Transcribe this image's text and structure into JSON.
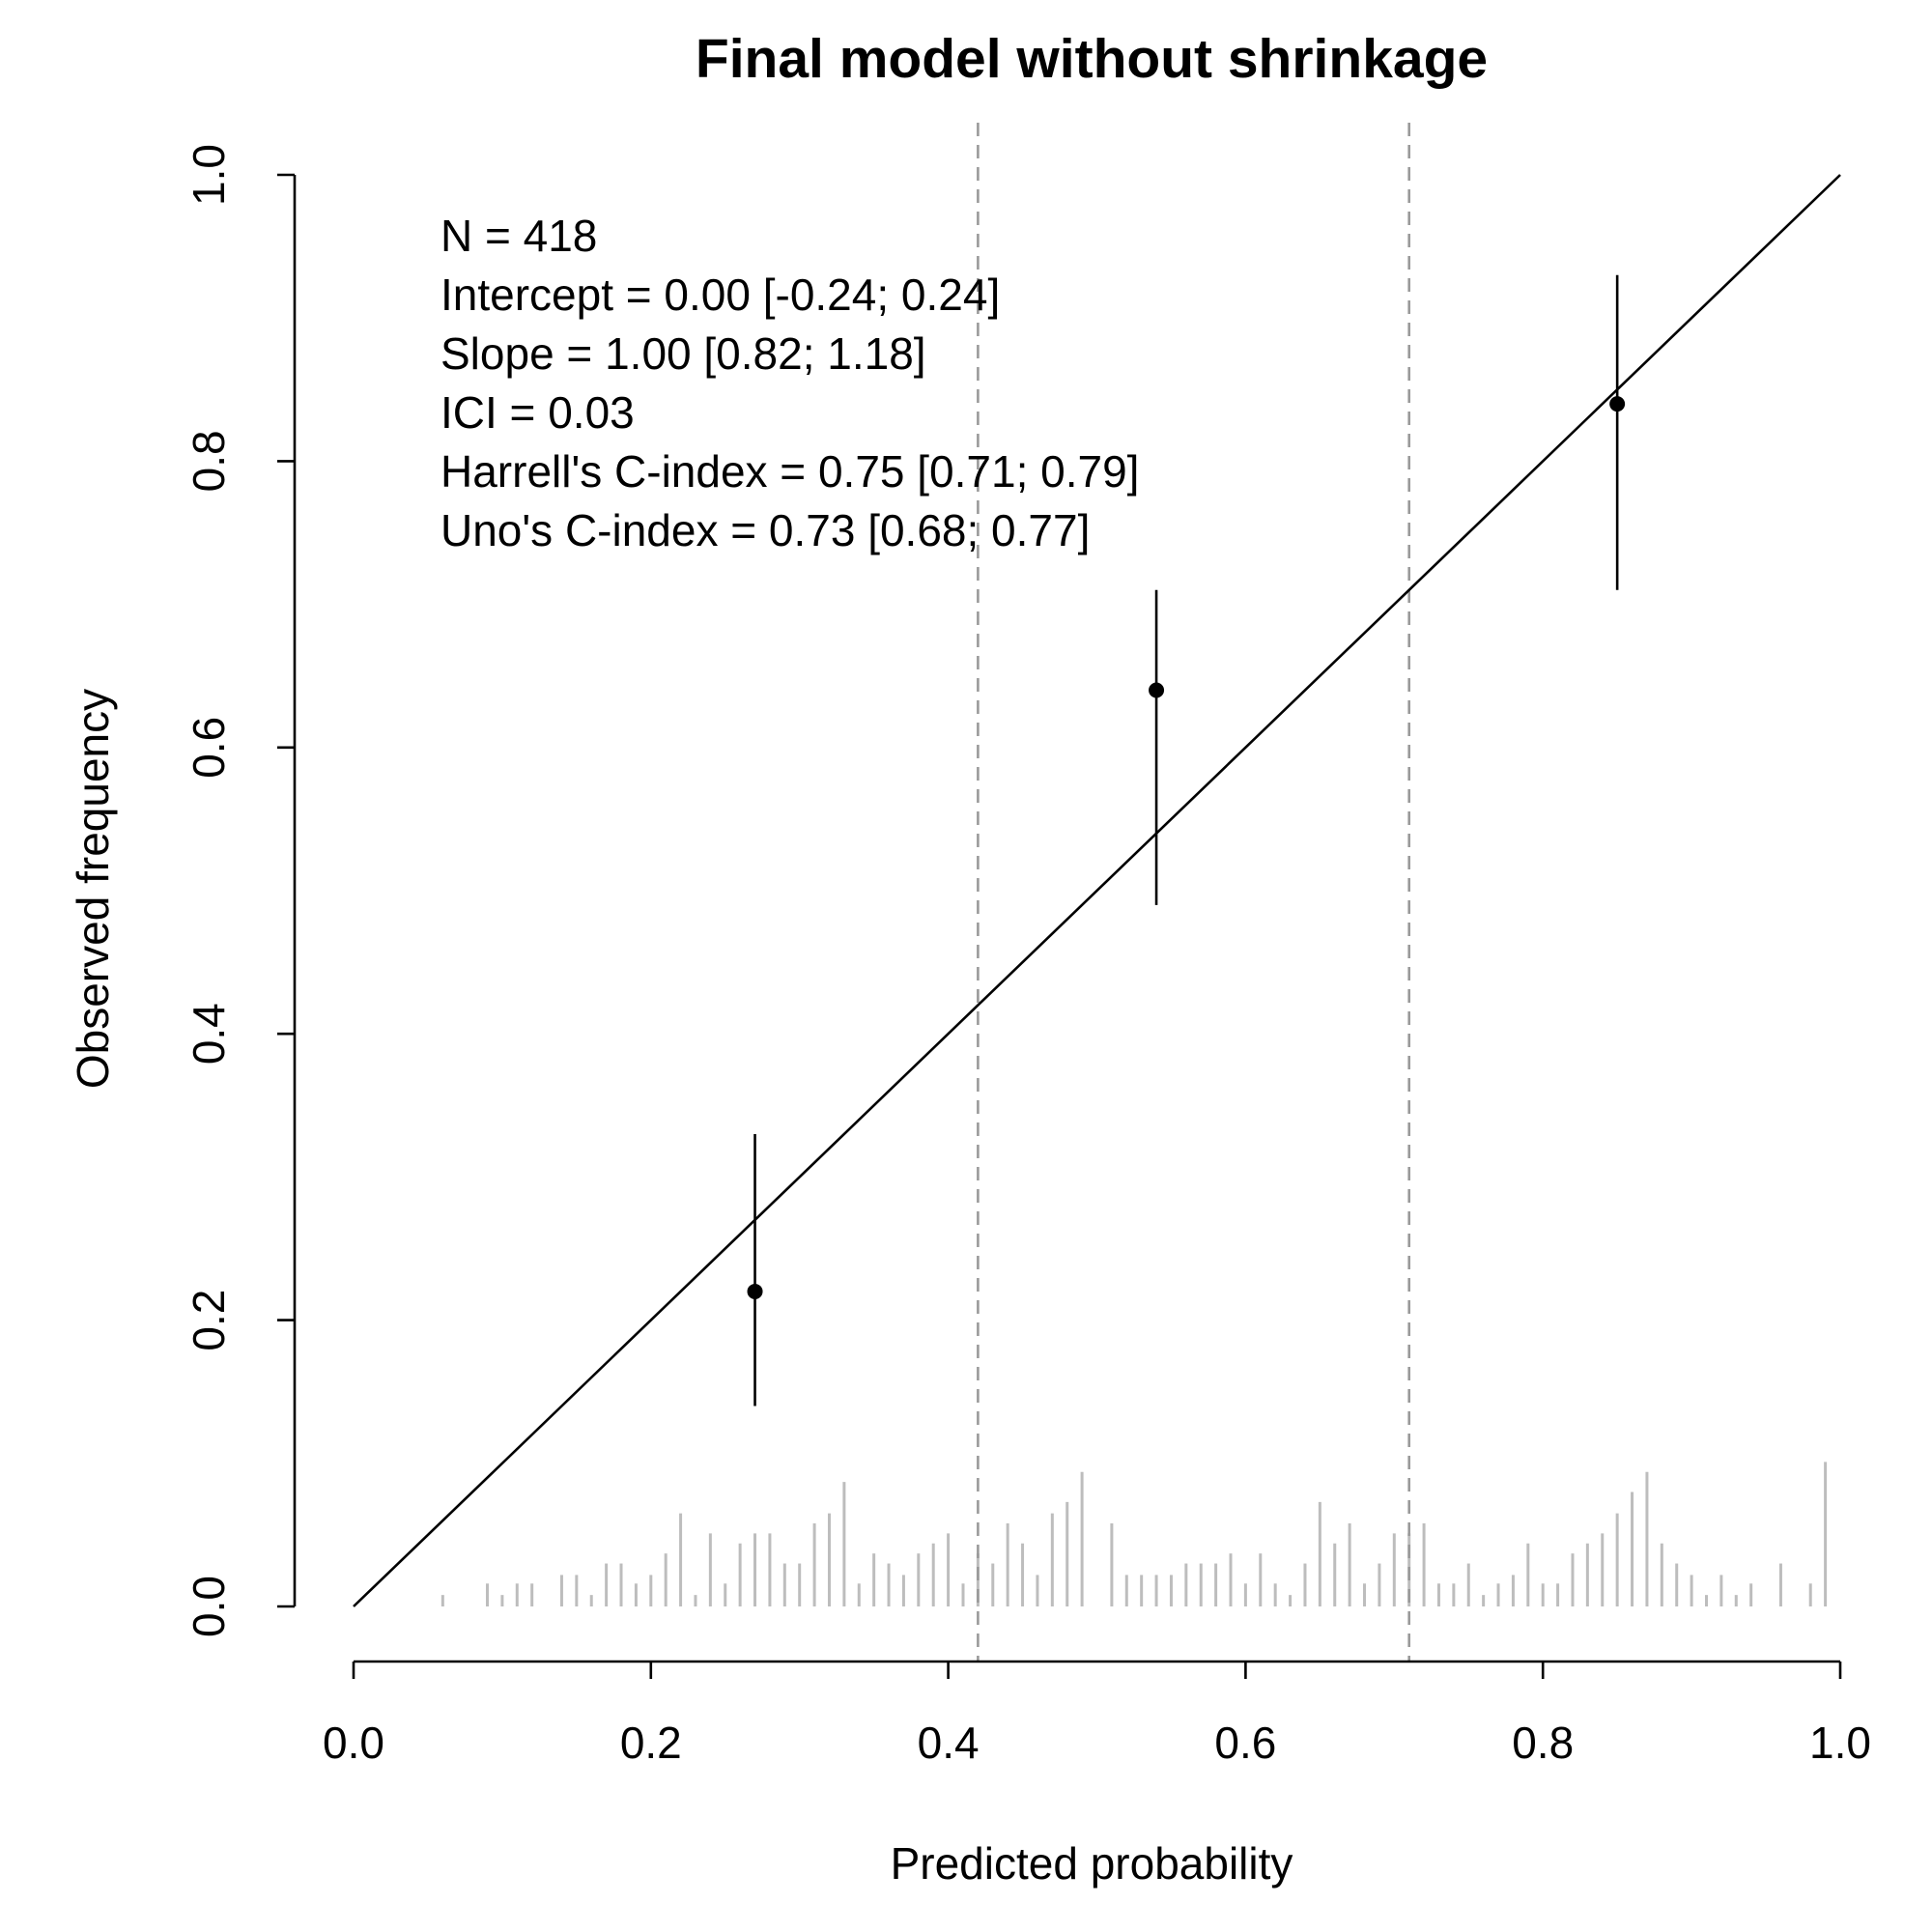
{
  "chart_data": {
    "type": "scatter",
    "title": "Final model without shrinkage",
    "xlabel": "Predicted probability",
    "ylabel": "Observed frequency",
    "xlim": [
      0,
      1
    ],
    "ylim": [
      0,
      1
    ],
    "x_ticks": [
      "0.0",
      "0.2",
      "0.4",
      "0.6",
      "0.8",
      "1.0"
    ],
    "y_ticks": [
      "0.0",
      "0.2",
      "0.4",
      "0.6",
      "0.8",
      "1.0"
    ],
    "grid": false,
    "reference_line": {
      "x": [
        0,
        1
      ],
      "y": [
        0,
        1
      ]
    },
    "cutpoints": [
      0.42,
      0.71
    ],
    "series": [
      {
        "x": [
          0.27,
          0.54,
          0.85
        ],
        "y": [
          0.22,
          0.64,
          0.84
        ],
        "lower": [
          0.14,
          0.49,
          0.71
        ],
        "upper": [
          0.33,
          0.71,
          0.93
        ]
      }
    ],
    "annotations": [
      "N = 418",
      "Intercept = 0.00 [-0.24; 0.24]",
      "Slope = 1.00 [0.82; 1.18]",
      "ICI = 0.03",
      "Harrell's C-index = 0.75 [0.71; 0.79]",
      "Uno's C-index = 0.73 [0.68; 0.77]"
    ],
    "distribution": [
      {
        "x": 0.06,
        "h": 0.008
      },
      {
        "x": 0.09,
        "h": 0.016
      },
      {
        "x": 0.1,
        "h": 0.008
      },
      {
        "x": 0.11,
        "h": 0.016
      },
      {
        "x": 0.12,
        "h": 0.016
      },
      {
        "x": 0.14,
        "h": 0.022
      },
      {
        "x": 0.15,
        "h": 0.022
      },
      {
        "x": 0.16,
        "h": 0.008
      },
      {
        "x": 0.17,
        "h": 0.03
      },
      {
        "x": 0.18,
        "h": 0.03
      },
      {
        "x": 0.19,
        "h": 0.016
      },
      {
        "x": 0.2,
        "h": 0.022
      },
      {
        "x": 0.21,
        "h": 0.037
      },
      {
        "x": 0.22,
        "h": 0.065
      },
      {
        "x": 0.23,
        "h": 0.008
      },
      {
        "x": 0.24,
        "h": 0.051
      },
      {
        "x": 0.25,
        "h": 0.016
      },
      {
        "x": 0.26,
        "h": 0.044
      },
      {
        "x": 0.27,
        "h": 0.051
      },
      {
        "x": 0.28,
        "h": 0.051
      },
      {
        "x": 0.29,
        "h": 0.03
      },
      {
        "x": 0.3,
        "h": 0.03
      },
      {
        "x": 0.31,
        "h": 0.058
      },
      {
        "x": 0.32,
        "h": 0.065
      },
      {
        "x": 0.33,
        "h": 0.087
      },
      {
        "x": 0.34,
        "h": 0.016
      },
      {
        "x": 0.35,
        "h": 0.037
      },
      {
        "x": 0.36,
        "h": 0.03
      },
      {
        "x": 0.37,
        "h": 0.022
      },
      {
        "x": 0.38,
        "h": 0.037
      },
      {
        "x": 0.39,
        "h": 0.044
      },
      {
        "x": 0.4,
        "h": 0.051
      },
      {
        "x": 0.41,
        "h": 0.016
      },
      {
        "x": 0.42,
        "h": 0.037
      },
      {
        "x": 0.43,
        "h": 0.03
      },
      {
        "x": 0.44,
        "h": 0.058
      },
      {
        "x": 0.45,
        "h": 0.044
      },
      {
        "x": 0.46,
        "h": 0.022
      },
      {
        "x": 0.47,
        "h": 0.065
      },
      {
        "x": 0.48,
        "h": 0.073
      },
      {
        "x": 0.49,
        "h": 0.094
      },
      {
        "x": 0.51,
        "h": 0.058
      },
      {
        "x": 0.52,
        "h": 0.022
      },
      {
        "x": 0.53,
        "h": 0.022
      },
      {
        "x": 0.54,
        "h": 0.022
      },
      {
        "x": 0.55,
        "h": 0.022
      },
      {
        "x": 0.56,
        "h": 0.03
      },
      {
        "x": 0.57,
        "h": 0.03
      },
      {
        "x": 0.58,
        "h": 0.03
      },
      {
        "x": 0.59,
        "h": 0.037
      },
      {
        "x": 0.6,
        "h": 0.016
      },
      {
        "x": 0.61,
        "h": 0.037
      },
      {
        "x": 0.62,
        "h": 0.016
      },
      {
        "x": 0.63,
        "h": 0.008
      },
      {
        "x": 0.64,
        "h": 0.03
      },
      {
        "x": 0.65,
        "h": 0.073
      },
      {
        "x": 0.66,
        "h": 0.044
      },
      {
        "x": 0.67,
        "h": 0.058
      },
      {
        "x": 0.68,
        "h": 0.016
      },
      {
        "x": 0.69,
        "h": 0.03
      },
      {
        "x": 0.7,
        "h": 0.051
      },
      {
        "x": 0.71,
        "h": 0.051
      },
      {
        "x": 0.72,
        "h": 0.058
      },
      {
        "x": 0.73,
        "h": 0.016
      },
      {
        "x": 0.74,
        "h": 0.016
      },
      {
        "x": 0.75,
        "h": 0.03
      },
      {
        "x": 0.76,
        "h": 0.008
      },
      {
        "x": 0.77,
        "h": 0.016
      },
      {
        "x": 0.78,
        "h": 0.022
      },
      {
        "x": 0.79,
        "h": 0.044
      },
      {
        "x": 0.8,
        "h": 0.016
      },
      {
        "x": 0.81,
        "h": 0.016
      },
      {
        "x": 0.82,
        "h": 0.037
      },
      {
        "x": 0.83,
        "h": 0.044
      },
      {
        "x": 0.84,
        "h": 0.051
      },
      {
        "x": 0.85,
        "h": 0.065
      },
      {
        "x": 0.86,
        "h": 0.08
      },
      {
        "x": 0.87,
        "h": 0.094
      },
      {
        "x": 0.88,
        "h": 0.044
      },
      {
        "x": 0.89,
        "h": 0.03
      },
      {
        "x": 0.9,
        "h": 0.022
      },
      {
        "x": 0.91,
        "h": 0.008
      },
      {
        "x": 0.92,
        "h": 0.022
      },
      {
        "x": 0.93,
        "h": 0.008
      },
      {
        "x": 0.94,
        "h": 0.016
      },
      {
        "x": 0.96,
        "h": 0.03
      },
      {
        "x": 0.98,
        "h": 0.016
      },
      {
        "x": 0.99,
        "h": 0.101
      }
    ]
  },
  "colors": {
    "points": "#000000",
    "reference_line": "#000000",
    "cutpoint_lines": "#9a9a9a",
    "distribution": "#bdbdbd"
  }
}
